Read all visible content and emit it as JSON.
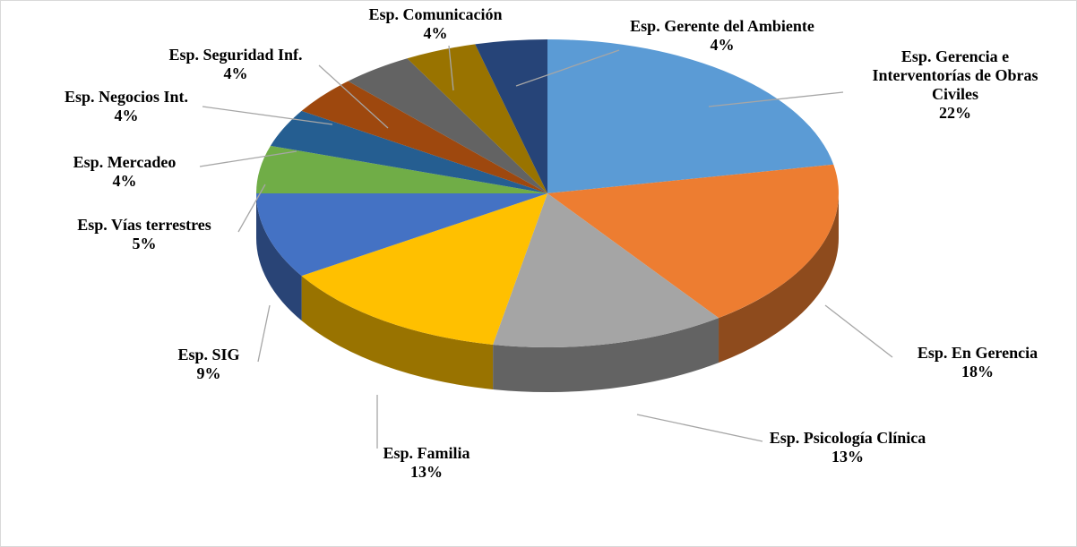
{
  "chart_data": {
    "type": "pie",
    "categories": [
      "Esp. Gerencia e Interventorías de Obras Civiles",
      "Esp. En Gerencia",
      "Esp. Psicología Clínica",
      "Esp. Familia",
      "Esp. SIG",
      "Esp. Vías terrestres",
      "Esp. Mercadeo",
      "Esp. Negocios Int.",
      "Esp. Seguridad Inf.",
      "Esp. Comunicación",
      "Esp. Gerente del Ambiente"
    ],
    "values": [
      22,
      18,
      13,
      13,
      9,
      5,
      4,
      4,
      4,
      4,
      4
    ],
    "value_labels": [
      "22%",
      "18%",
      "13%",
      "13%",
      "9%",
      "5%",
      "4%",
      "4%",
      "4%",
      "4%",
      "4%"
    ],
    "colors": [
      "#5b9bd5",
      "#ed7d31",
      "#a5a5a5",
      "#ffc000",
      "#4472c4",
      "#70ad47",
      "#255e91",
      "#9e480e",
      "#636363",
      "#997300",
      "#264478"
    ]
  }
}
